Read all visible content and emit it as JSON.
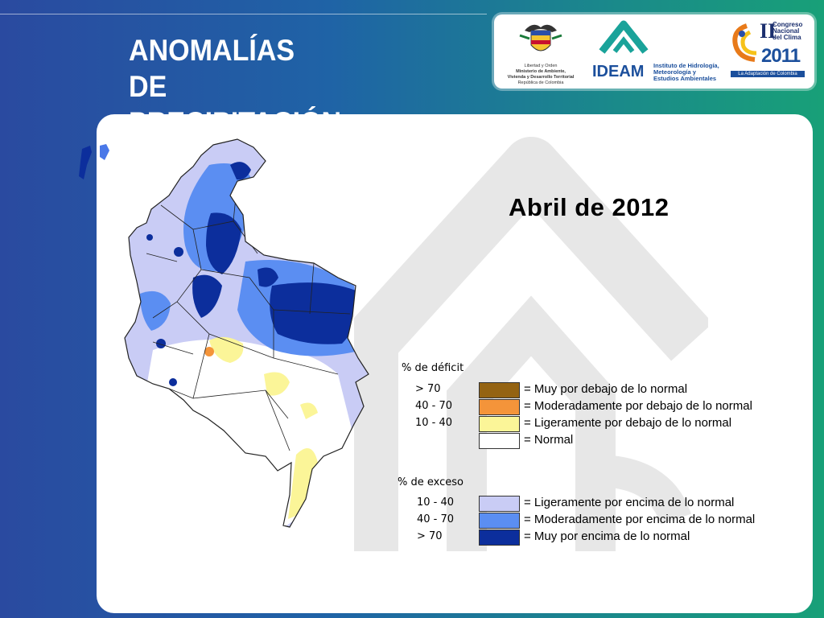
{
  "slide": {
    "title_line1": "ANOMALÍAS DE",
    "title_line2": "PRECIPITACIÓN"
  },
  "logos": {
    "ministry": {
      "line1": "Libertad y Orden",
      "line2": "Ministerio de Ambiente,",
      "line3": "Vivienda y Desarrollo Territorial",
      "line4": "República de Colombia"
    },
    "ideam": {
      "name": "IDEAM",
      "line1": "Instituto de Hidrología,",
      "line2": "Meteorología y",
      "line3": "Estudios Ambientales"
    },
    "congreso": {
      "roman": "II",
      "line1": "Congreso",
      "line2": "Nacional",
      "line3": "del Clima",
      "year": "2011",
      "tagline": "La Adaptación de Colombia"
    }
  },
  "map": {
    "date_label": "Abril  de 2012"
  },
  "legend": {
    "deficit": {
      "heading": "% de déficit",
      "items": [
        {
          "range": "> 70",
          "color": "#946312",
          "label": "= Muy por debajo de lo normal"
        },
        {
          "range": "40 -  70",
          "color": "#f4943a",
          "label": "= Moderadamente por debajo de lo normal"
        },
        {
          "range": "10 -  40",
          "color": "#fbf598",
          "label": "= Ligeramente por debajo de lo normal"
        },
        {
          "range": "",
          "color": "#ffffff",
          "label": "= Normal"
        }
      ]
    },
    "excess": {
      "heading": "% de exceso",
      "items": [
        {
          "range": "10 -  40",
          "color": "#c9ccf5",
          "label": "= Ligeramente por encima de lo normal"
        },
        {
          "range": "40 -  70",
          "color": "#5b8ef2",
          "label": "= Moderadamente por encima de lo normal"
        },
        {
          "range": "> 70",
          "color": "#0c2e9c",
          "label": "= Muy por encima de lo normal"
        }
      ]
    }
  }
}
